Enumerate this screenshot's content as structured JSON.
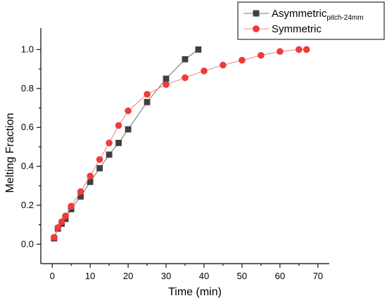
{
  "chart_data": {
    "type": "line",
    "xlabel": "Time (min)",
    "ylabel": "Melting Fraction",
    "xlim": [
      -3,
      73
    ],
    "ylim": [
      -0.1,
      1.11
    ],
    "xticks": [
      0,
      10,
      20,
      30,
      40,
      50,
      60,
      70
    ],
    "yticks": [
      0.0,
      0.2,
      0.4,
      0.6,
      0.8,
      1.0
    ],
    "xtick_labels": [
      "0",
      "10",
      "20",
      "30",
      "40",
      "50",
      "60",
      "70"
    ],
    "ytick_labels": [
      "0.0",
      "0.2",
      "0.4",
      "0.6",
      "0.8",
      "1.0"
    ],
    "grid": false,
    "legend": {
      "placement": "top-right",
      "entries": [
        {
          "series_index": 0,
          "main": "Asymmetric",
          "sub": "pitch-24mm"
        },
        {
          "series_index": 1,
          "main": "Symmetric",
          "sub": ""
        }
      ]
    },
    "series": [
      {
        "name": "Asymmetric pitch-24mm",
        "color": "#404040",
        "line_color": "#7a7a7a",
        "marker": "square",
        "x": [
          0.5,
          1.5,
          2.5,
          3.5,
          5,
          7.5,
          10,
          12.5,
          15,
          17.5,
          20,
          25,
          30,
          35,
          38.5
        ],
        "y": [
          0.03,
          0.08,
          0.105,
          0.13,
          0.18,
          0.245,
          0.32,
          0.39,
          0.46,
          0.52,
          0.59,
          0.73,
          0.85,
          0.95,
          1.0
        ]
      },
      {
        "name": "Symmetric",
        "color": "#ef3b3b",
        "line_color": "#f08a8a",
        "marker": "circle",
        "x": [
          0.5,
          1.5,
          2.5,
          3.5,
          5,
          7.5,
          10,
          12.5,
          15,
          17.5,
          20,
          25,
          30,
          35,
          40,
          45,
          50,
          55,
          60,
          65,
          67
        ],
        "y": [
          0.035,
          0.085,
          0.115,
          0.145,
          0.195,
          0.27,
          0.35,
          0.435,
          0.52,
          0.61,
          0.685,
          0.77,
          0.82,
          0.855,
          0.89,
          0.92,
          0.945,
          0.97,
          0.99,
          1.0,
          1.0
        ]
      }
    ]
  }
}
